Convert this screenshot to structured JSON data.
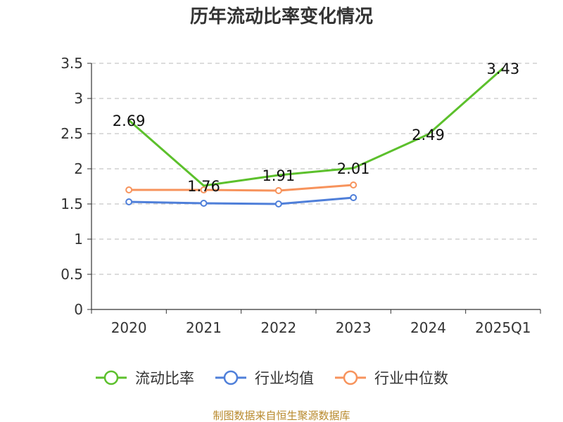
{
  "chart_data": {
    "type": "line",
    "title": "历年流动比率变化情况",
    "categories": [
      "2020",
      "2021",
      "2022",
      "2023",
      "2024",
      "2025Q1"
    ],
    "ylim": [
      0,
      3.5
    ],
    "yticks": [
      "0",
      "0.5",
      "1",
      "1.5",
      "2",
      "2.5",
      "3",
      "3.5"
    ],
    "grid": true,
    "legend_position": "bottom",
    "series": [
      {
        "name": "流动比率",
        "color": "#5cc02c",
        "values": [
          2.69,
          1.76,
          1.91,
          2.01,
          2.49,
          3.43
        ],
        "labels": [
          "2.69",
          "1.76",
          "1.91",
          "2.01",
          "2.49",
          "3.43"
        ],
        "markers": false
      },
      {
        "name": "行业均值",
        "color": "#4f7fd9",
        "values": [
          1.53,
          1.51,
          1.5,
          1.59,
          null,
          null
        ],
        "markers": true
      },
      {
        "name": "行业中位数",
        "color": "#f7935c",
        "values": [
          1.7,
          1.7,
          1.69,
          1.77,
          null,
          null
        ],
        "markers": true
      }
    ]
  },
  "source": "制图数据来自恒生聚源数据库"
}
